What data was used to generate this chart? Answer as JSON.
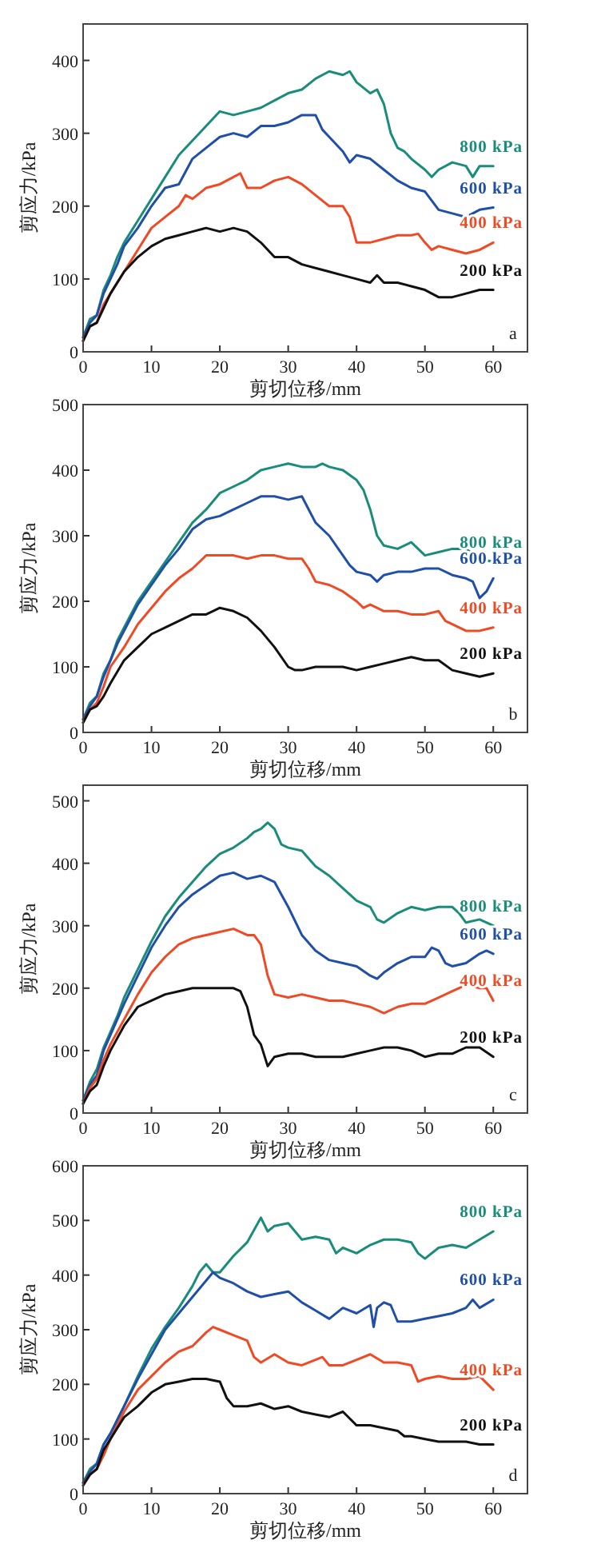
{
  "chart_data": [
    {
      "type": "line",
      "xlabel": "剪切位移/mm",
      "ylabel": "剪应力/kPa",
      "xlim": [
        0,
        65
      ],
      "xticks": [
        0,
        10,
        20,
        30,
        40,
        50,
        60
      ],
      "ylim": [
        0,
        450
      ],
      "yticks": [
        0,
        100,
        200,
        300,
        400
      ],
      "annotations": [
        "a"
      ],
      "series": [
        {
          "name": "800 kPa",
          "color": "#1a8c7a",
          "x": [
            0,
            1,
            2,
            3,
            4,
            5,
            6,
            8,
            10,
            12,
            14,
            16,
            18,
            20,
            22,
            24,
            26,
            28,
            30,
            32,
            34,
            36,
            38,
            39,
            40,
            42,
            43,
            44,
            45,
            46,
            47,
            48,
            50,
            51,
            52,
            54,
            56,
            57,
            58,
            60
          ],
          "values": [
            20,
            45,
            50,
            85,
            105,
            130,
            150,
            180,
            210,
            240,
            270,
            290,
            310,
            330,
            325,
            330,
            335,
            345,
            355,
            360,
            375,
            385,
            380,
            385,
            370,
            355,
            360,
            340,
            300,
            280,
            275,
            265,
            250,
            240,
            250,
            260,
            255,
            240,
            255,
            255
          ]
        },
        {
          "name": "600 kPa",
          "color": "#1f4fa8",
          "x": [
            0,
            1,
            2,
            3,
            4,
            5,
            6,
            8,
            10,
            12,
            14,
            16,
            18,
            20,
            22,
            24,
            26,
            28,
            30,
            32,
            34,
            35,
            36,
            38,
            39,
            40,
            42,
            44,
            46,
            48,
            50,
            52,
            54,
            56,
            58,
            60
          ],
          "values": [
            20,
            40,
            50,
            80,
            100,
            120,
            145,
            170,
            200,
            225,
            230,
            265,
            280,
            295,
            300,
            295,
            310,
            310,
            315,
            325,
            325,
            305,
            295,
            275,
            260,
            270,
            265,
            250,
            235,
            225,
            220,
            195,
            190,
            185,
            195,
            198
          ]
        },
        {
          "name": "400 kPa",
          "color": "#f04a24",
          "x": [
            0,
            1,
            2,
            3,
            4,
            6,
            8,
            10,
            12,
            14,
            15,
            16,
            18,
            20,
            22,
            23,
            24,
            26,
            28,
            30,
            32,
            34,
            36,
            38,
            39,
            40,
            42,
            44,
            46,
            48,
            49,
            50,
            51,
            52,
            54,
            56,
            58,
            60
          ],
          "values": [
            15,
            35,
            40,
            65,
            80,
            110,
            140,
            170,
            185,
            200,
            215,
            210,
            225,
            230,
            240,
            245,
            225,
            225,
            235,
            240,
            230,
            215,
            200,
            200,
            185,
            150,
            150,
            155,
            160,
            160,
            162,
            150,
            140,
            145,
            140,
            135,
            140,
            150
          ]
        },
        {
          "name": "200 kPa",
          "color": "#111111",
          "x": [
            0,
            1,
            2,
            3,
            4,
            6,
            8,
            10,
            12,
            14,
            16,
            18,
            20,
            22,
            24,
            26,
            28,
            30,
            32,
            34,
            36,
            38,
            40,
            42,
            43,
            44,
            46,
            48,
            50,
            52,
            54,
            56,
            58,
            60
          ],
          "values": [
            15,
            35,
            40,
            60,
            80,
            110,
            130,
            145,
            155,
            160,
            165,
            170,
            165,
            170,
            165,
            150,
            130,
            130,
            120,
            115,
            110,
            105,
            100,
            95,
            105,
            95,
            95,
            90,
            85,
            75,
            75,
            80,
            85,
            85
          ]
        }
      ]
    },
    {
      "type": "line",
      "xlabel": "剪切位移/mm",
      "ylabel": "剪应力/kPa",
      "xlim": [
        0,
        65
      ],
      "xticks": [
        0,
        10,
        20,
        30,
        40,
        50,
        60
      ],
      "ylim": [
        0,
        500
      ],
      "yticks": [
        0,
        100,
        200,
        300,
        400,
        500
      ],
      "annotations": [
        "b"
      ],
      "series": [
        {
          "name": "800 kPa",
          "color": "#1a8c7a",
          "x": [
            0,
            1,
            2,
            3,
            4,
            5,
            6,
            8,
            10,
            12,
            14,
            16,
            18,
            20,
            22,
            24,
            26,
            28,
            30,
            32,
            34,
            35,
            36,
            38,
            40,
            41,
            42,
            43,
            44,
            46,
            48,
            50,
            52,
            54,
            56,
            58,
            60
          ],
          "values": [
            20,
            45,
            55,
            90,
            110,
            140,
            160,
            200,
            230,
            260,
            290,
            320,
            340,
            365,
            375,
            385,
            400,
            405,
            410,
            405,
            405,
            410,
            405,
            400,
            385,
            370,
            340,
            300,
            285,
            280,
            290,
            270,
            275,
            280,
            280,
            265,
            260
          ]
        },
        {
          "name": "600 kPa",
          "color": "#1f4fa8",
          "x": [
            0,
            1,
            2,
            3,
            4,
            5,
            6,
            8,
            10,
            12,
            14,
            16,
            18,
            20,
            22,
            24,
            26,
            28,
            30,
            32,
            33,
            34,
            36,
            38,
            39,
            40,
            42,
            43,
            44,
            46,
            48,
            50,
            52,
            54,
            56,
            57,
            58,
            59,
            60
          ],
          "values": [
            20,
            40,
            55,
            85,
            110,
            135,
            155,
            195,
            225,
            255,
            280,
            310,
            325,
            330,
            340,
            350,
            360,
            360,
            355,
            360,
            340,
            320,
            300,
            270,
            255,
            245,
            240,
            230,
            240,
            245,
            245,
            250,
            250,
            240,
            235,
            230,
            205,
            215,
            235
          ]
        },
        {
          "name": "400 kPa",
          "color": "#f04a24",
          "x": [
            0,
            1,
            2,
            3,
            4,
            6,
            8,
            10,
            12,
            14,
            16,
            18,
            20,
            22,
            24,
            26,
            28,
            30,
            32,
            33,
            34,
            36,
            38,
            40,
            41,
            42,
            44,
            46,
            48,
            50,
            52,
            53,
            54,
            56,
            58,
            60
          ],
          "values": [
            15,
            35,
            45,
            70,
            100,
            130,
            165,
            190,
            215,
            235,
            250,
            270,
            270,
            270,
            265,
            270,
            270,
            265,
            265,
            250,
            230,
            225,
            215,
            200,
            190,
            195,
            185,
            185,
            180,
            180,
            185,
            170,
            165,
            155,
            155,
            160
          ]
        },
        {
          "name": "200 kPa",
          "color": "#111111",
          "x": [
            0,
            1,
            2,
            3,
            4,
            6,
            8,
            10,
            12,
            14,
            16,
            18,
            20,
            22,
            24,
            26,
            28,
            30,
            31,
            32,
            34,
            36,
            38,
            40,
            42,
            44,
            46,
            48,
            50,
            52,
            54,
            56,
            58,
            60
          ],
          "values": [
            15,
            35,
            40,
            55,
            75,
            110,
            130,
            150,
            160,
            170,
            180,
            180,
            190,
            185,
            175,
            155,
            130,
            100,
            95,
            95,
            100,
            100,
            100,
            95,
            100,
            105,
            110,
            115,
            110,
            110,
            95,
            90,
            85,
            90
          ]
        }
      ]
    },
    {
      "type": "line",
      "xlabel": "剪切位移/mm",
      "ylabel": "剪应力/kPa",
      "xlim": [
        0,
        65
      ],
      "xticks": [
        0,
        10,
        20,
        30,
        40,
        50,
        60
      ],
      "ylim": [
        0,
        525
      ],
      "yticks": [
        0,
        100,
        200,
        300,
        400,
        500
      ],
      "annotations": [
        "c"
      ],
      "series": [
        {
          "name": "800 kPa",
          "color": "#1a8c7a",
          "x": [
            0,
            1,
            2,
            3,
            4,
            5,
            6,
            8,
            10,
            12,
            14,
            16,
            18,
            20,
            22,
            24,
            25,
            26,
            27,
            28,
            29,
            30,
            32,
            34,
            36,
            38,
            40,
            42,
            43,
            44,
            46,
            48,
            50,
            52,
            54,
            55,
            56,
            58,
            60
          ],
          "values": [
            20,
            50,
            70,
            105,
            130,
            155,
            185,
            230,
            275,
            315,
            345,
            370,
            395,
            415,
            425,
            440,
            450,
            455,
            465,
            455,
            430,
            425,
            420,
            395,
            380,
            360,
            340,
            330,
            310,
            305,
            320,
            330,
            325,
            330,
            330,
            320,
            305,
            310,
            300
          ]
        },
        {
          "name": "600 kPa",
          "color": "#1f4fa8",
          "x": [
            0,
            1,
            2,
            3,
            4,
            5,
            6,
            8,
            10,
            12,
            14,
            16,
            18,
            20,
            22,
            24,
            26,
            27,
            28,
            29,
            30,
            32,
            34,
            36,
            38,
            40,
            42,
            43,
            44,
            46,
            48,
            50,
            51,
            52,
            53,
            54,
            56,
            58,
            59,
            60
          ],
          "values": [
            20,
            45,
            60,
            100,
            125,
            150,
            175,
            220,
            265,
            300,
            330,
            350,
            365,
            380,
            385,
            375,
            380,
            375,
            370,
            350,
            330,
            285,
            260,
            245,
            240,
            235,
            220,
            215,
            225,
            240,
            250,
            250,
            265,
            260,
            240,
            235,
            240,
            255,
            260,
            255
          ]
        },
        {
          "name": "400 kPa",
          "color": "#f04a24",
          "x": [
            0,
            1,
            2,
            3,
            4,
            6,
            8,
            10,
            12,
            14,
            16,
            18,
            20,
            22,
            24,
            25,
            26,
            27,
            28,
            30,
            32,
            34,
            36,
            38,
            40,
            42,
            44,
            46,
            48,
            50,
            52,
            54,
            56,
            58,
            59,
            60
          ],
          "values": [
            15,
            40,
            55,
            85,
            110,
            150,
            190,
            225,
            250,
            270,
            280,
            285,
            290,
            295,
            285,
            285,
            270,
            220,
            190,
            185,
            190,
            185,
            180,
            180,
            175,
            170,
            160,
            170,
            175,
            175,
            185,
            195,
            205,
            200,
            200,
            180
          ]
        },
        {
          "name": "200 kPa",
          "color": "#111111",
          "x": [
            0,
            1,
            2,
            3,
            4,
            6,
            8,
            10,
            12,
            14,
            16,
            18,
            20,
            22,
            23,
            24,
            25,
            26,
            27,
            28,
            30,
            32,
            34,
            36,
            38,
            40,
            42,
            44,
            46,
            48,
            50,
            52,
            54,
            56,
            58,
            60
          ],
          "values": [
            15,
            35,
            45,
            75,
            100,
            140,
            170,
            180,
            190,
            195,
            200,
            200,
            200,
            200,
            195,
            170,
            125,
            110,
            75,
            90,
            95,
            95,
            90,
            90,
            90,
            95,
            100,
            105,
            105,
            100,
            90,
            95,
            95,
            105,
            105,
            90
          ]
        }
      ]
    },
    {
      "type": "line",
      "xlabel": "剪切位移/mm",
      "ylabel": "剪应力/kPa",
      "xlim": [
        0,
        65
      ],
      "xticks": [
        0,
        10,
        20,
        30,
        40,
        50,
        60
      ],
      "ylim": [
        0,
        600
      ],
      "yticks": [
        0,
        100,
        200,
        300,
        400,
        500,
        600
      ],
      "annotations": [
        "d"
      ],
      "series": [
        {
          "name": "800 kPa",
          "color": "#1a8c7a",
          "x": [
            0,
            1,
            2,
            3,
            4,
            6,
            8,
            10,
            12,
            14,
            16,
            17,
            18,
            19,
            20,
            22,
            24,
            26,
            27,
            28,
            30,
            32,
            34,
            36,
            37,
            38,
            40,
            42,
            44,
            46,
            48,
            49,
            50,
            52,
            54,
            56,
            58,
            60
          ],
          "values": [
            20,
            45,
            55,
            90,
            110,
            160,
            215,
            265,
            305,
            340,
            380,
            405,
            420,
            405,
            405,
            435,
            460,
            505,
            480,
            490,
            495,
            465,
            470,
            465,
            440,
            450,
            440,
            455,
            465,
            465,
            460,
            440,
            430,
            450,
            455,
            450,
            465,
            480
          ]
        },
        {
          "name": "600 kPa",
          "color": "#1f4fa8",
          "x": [
            0,
            1,
            2,
            3,
            4,
            6,
            8,
            10,
            12,
            14,
            16,
            18,
            19,
            20,
            22,
            24,
            26,
            28,
            30,
            32,
            34,
            36,
            38,
            40,
            42,
            42.5,
            43,
            44,
            45,
            46,
            48,
            50,
            52,
            54,
            56,
            57,
            58,
            60
          ],
          "values": [
            20,
            40,
            55,
            90,
            110,
            160,
            210,
            255,
            300,
            330,
            360,
            390,
            405,
            395,
            385,
            370,
            360,
            365,
            370,
            350,
            335,
            320,
            340,
            330,
            345,
            305,
            340,
            350,
            345,
            315,
            315,
            320,
            325,
            330,
            340,
            355,
            340,
            355
          ]
        },
        {
          "name": "400 kPa",
          "color": "#f04a24",
          "x": [
            0,
            1,
            2,
            3,
            4,
            6,
            8,
            10,
            12,
            14,
            16,
            18,
            19,
            20,
            22,
            24,
            25,
            26,
            28,
            30,
            32,
            34,
            35,
            36,
            38,
            40,
            42,
            44,
            46,
            48,
            49,
            50,
            52,
            54,
            56,
            58,
            60
          ],
          "values": [
            15,
            35,
            45,
            70,
            100,
            150,
            190,
            215,
            240,
            260,
            270,
            295,
            305,
            300,
            290,
            280,
            250,
            240,
            255,
            240,
            235,
            245,
            250,
            235,
            235,
            245,
            255,
            240,
            240,
            235,
            205,
            210,
            215,
            210,
            210,
            215,
            190
          ]
        },
        {
          "name": "200 kPa",
          "color": "#111111",
          "x": [
            0,
            1,
            2,
            3,
            4,
            6,
            8,
            10,
            12,
            14,
            16,
            18,
            20,
            21,
            22,
            24,
            26,
            28,
            30,
            32,
            34,
            36,
            38,
            40,
            42,
            44,
            46,
            47,
            48,
            50,
            52,
            54,
            56,
            58,
            60
          ],
          "values": [
            15,
            35,
            45,
            80,
            100,
            140,
            160,
            185,
            200,
            205,
            210,
            210,
            205,
            175,
            160,
            160,
            165,
            155,
            160,
            150,
            145,
            140,
            150,
            125,
            125,
            120,
            115,
            105,
            105,
            100,
            95,
            95,
            95,
            90,
            90
          ]
        }
      ]
    }
  ]
}
